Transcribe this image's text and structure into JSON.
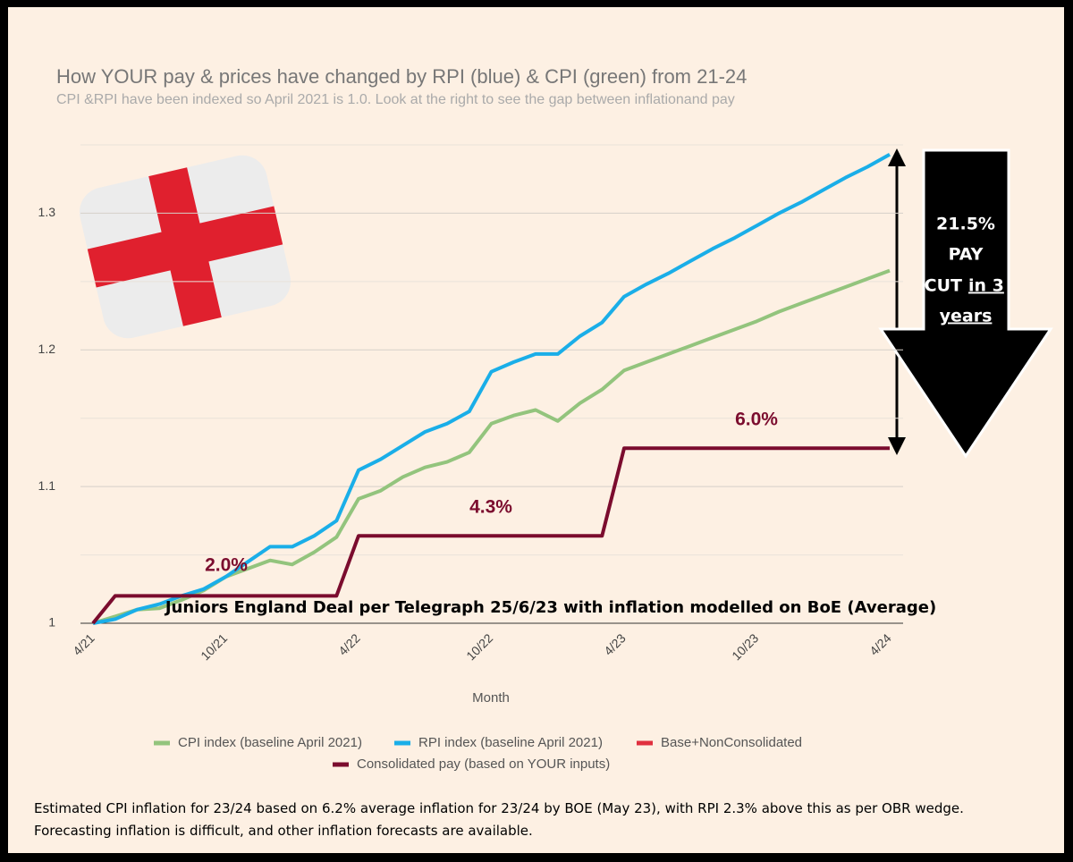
{
  "chart_data": {
    "type": "line",
    "title": "How YOUR pay & prices have changed by RPI (blue) & CPI (green) from 21-24",
    "subtitle": "CPI &RPI have been indexed so April 2021 is 1.0. Look at the right to see the gap between inflationand pay",
    "x_label": "Month",
    "categories": [
      "4/21",
      null,
      null,
      null,
      null,
      null,
      "10/21",
      null,
      null,
      null,
      null,
      null,
      "4/22",
      null,
      null,
      null,
      null,
      null,
      "10/22",
      null,
      null,
      null,
      null,
      null,
      "4/23",
      null,
      null,
      null,
      null,
      null,
      "10/23",
      null,
      null,
      null,
      null,
      null,
      "4/24"
    ],
    "series": [
      {
        "name": "CPI index (baseline April 2021)",
        "color": "#93c47d",
        "values": [
          1.0,
          1.005,
          1.01,
          1.011,
          1.017,
          1.024,
          1.034,
          1.04,
          1.046,
          1.043,
          1.052,
          1.063,
          1.091,
          1.097,
          1.107,
          1.114,
          1.118,
          1.125,
          1.146,
          1.152,
          1.156,
          1.148,
          1.161,
          1.171,
          1.185,
          1.191,
          1.197,
          1.203,
          1.209,
          1.215,
          1.221,
          1.228,
          1.234,
          1.24,
          1.246,
          1.252,
          1.258
        ]
      },
      {
        "name": "RPI index (baseline April 2021)",
        "color": "#1aaee8",
        "values": [
          1.0,
          1.003,
          1.01,
          1.014,
          1.02,
          1.025,
          1.034,
          1.045,
          1.056,
          1.056,
          1.064,
          1.075,
          1.112,
          1.12,
          1.13,
          1.14,
          1.146,
          1.155,
          1.184,
          1.191,
          1.197,
          1.197,
          1.21,
          1.22,
          1.239,
          1.248,
          1.256,
          1.265,
          1.274,
          1.282,
          1.291,
          1.3,
          1.308,
          1.317,
          1.326,
          1.334,
          1.343
        ]
      },
      {
        "name": "Base+NonConsolidated",
        "color": "#e0303f",
        "values": [
          null,
          null,
          null,
          null,
          null,
          null,
          null,
          null,
          null,
          null,
          null,
          null,
          null,
          null,
          null,
          null,
          null,
          null,
          null,
          null,
          null,
          null,
          null,
          null,
          null,
          null,
          null,
          null,
          null,
          null,
          null,
          null,
          null,
          null,
          null,
          null,
          null
        ]
      },
      {
        "name": "Consolidated pay (based on YOUR inputs)",
        "color": "#7b0c2e",
        "values": [
          1.0,
          1.02,
          1.02,
          1.02,
          1.02,
          1.02,
          1.02,
          1.02,
          1.02,
          1.02,
          1.02,
          1.02,
          1.064,
          1.064,
          1.064,
          1.064,
          1.064,
          1.064,
          1.064,
          1.064,
          1.064,
          1.064,
          1.064,
          1.064,
          1.128,
          1.128,
          1.128,
          1.128,
          1.128,
          1.128,
          1.128,
          1.128,
          1.128,
          1.128,
          1.128,
          1.128,
          1.128
        ]
      }
    ],
    "ylim": [
      1,
      1.35
    ],
    "yticks": [
      1,
      1.1,
      1.2,
      1.3
    ],
    "minor_yticks": [
      1.05,
      1.15,
      1.25,
      1.35
    ],
    "grid": true,
    "legend": "bottom",
    "annotations": {
      "step_labels": [
        "2.0%",
        "4.3%",
        "6.0%"
      ],
      "note": "Juniors England Deal per Telegraph 25/6/23 with inflation modelled on BoE (Average)",
      "arrow_text": [
        "21.5%",
        "PAY",
        "CUT",
        "in 3",
        "years"
      ]
    }
  },
  "footnote": "Estimated CPI inflation for 23/24 based on 6.2% average inflation for 23/24 by BOE (May 23), with RPI 2.3% above this as per OBR wedge. Forecasting inflation is difficult, and other inflation forecasts are available."
}
